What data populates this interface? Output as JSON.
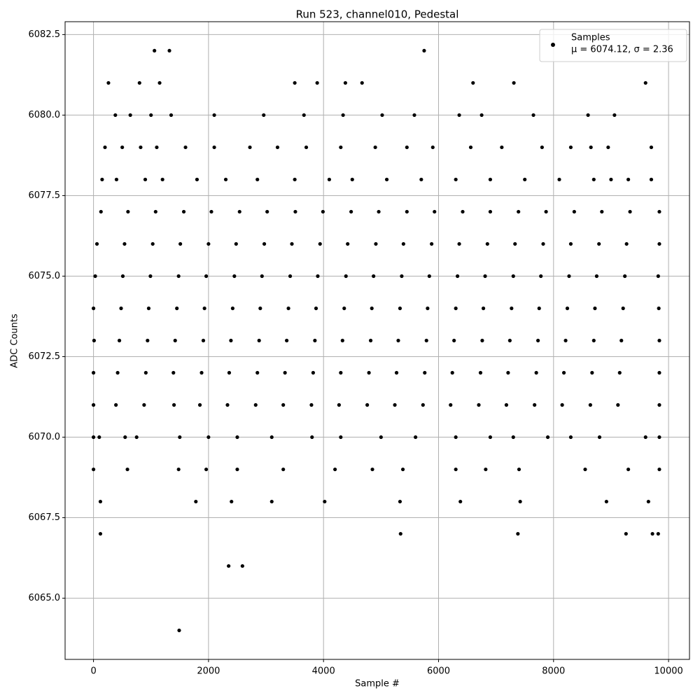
{
  "chart_data": {
    "type": "scatter",
    "title": "Run 523, channel010, Pedestal",
    "xlabel": "Sample #",
    "ylabel": "ADC Counts",
    "grid": true,
    "legend": "upper right",
    "legend_note": "μ = 6074.12, σ = 2.36",
    "xlim": [
      -494,
      10364
    ],
    "ylim": [
      6063.1,
      6082.9
    ],
    "xticks": [
      0,
      2000,
      4000,
      6000,
      8000,
      10000
    ],
    "yticks": [
      {
        "value": 6065,
        "label": "6065.0"
      },
      {
        "value": 6067.5,
        "label": "6067.5"
      },
      {
        "value": 6070,
        "label": "6070.0"
      },
      {
        "value": 6072.5,
        "label": "6072.5"
      },
      {
        "value": 6075,
        "label": "6075.0"
      },
      {
        "value": 6077.5,
        "label": "6077.5"
      },
      {
        "value": 6080,
        "label": "6080.0"
      },
      {
        "value": 6082.5,
        "label": "6082.5"
      }
    ],
    "series": [
      {
        "name": "Samples",
        "color": "#000000",
        "x": [
          1060,
          1320,
          5750,
          260,
          800,
          1150,
          3500,
          3890,
          4380,
          4670,
          6600,
          7310,
          9600,
          380,
          640,
          1000,
          1350,
          2100,
          2960,
          3660,
          4340,
          5020,
          5580,
          6360,
          6750,
          7650,
          8600,
          9060,
          200,
          500,
          820,
          1100,
          1600,
          2100,
          2720,
          3200,
          3700,
          4300,
          4900,
          5450,
          5900,
          6560,
          7100,
          7800,
          8300,
          8650,
          8950,
          9700,
          150,
          400,
          900,
          1200,
          1800,
          2300,
          2850,
          3500,
          4100,
          4500,
          5100,
          5700,
          6300,
          6900,
          7500,
          8100,
          8700,
          9000,
          9300,
          9700,
          130,
          600,
          1080,
          1570,
          2050,
          2540,
          3020,
          3510,
          3990,
          4480,
          4960,
          5450,
          5930,
          6420,
          6900,
          7390,
          7870,
          8360,
          8840,
          9330,
          9840,
          60,
          540,
          1030,
          1510,
          2000,
          2480,
          2970,
          3450,
          3940,
          4420,
          4910,
          5390,
          5880,
          6360,
          6850,
          7330,
          7820,
          8300,
          8790,
          9270,
          9840,
          30,
          510,
          990,
          1480,
          1960,
          2450,
          2930,
          3420,
          3900,
          4390,
          4870,
          5360,
          5840,
          6330,
          6810,
          7300,
          7780,
          8270,
          8750,
          9240,
          9820,
          0,
          480,
          960,
          1450,
          1930,
          2420,
          2900,
          3390,
          3870,
          4360,
          4840,
          5330,
          5810,
          6300,
          6780,
          7270,
          7750,
          8240,
          8720,
          9210,
          9830,
          10,
          450,
          940,
          1420,
          1910,
          2390,
          2880,
          3360,
          3850,
          4330,
          4820,
          5300,
          5790,
          6270,
          6760,
          7240,
          7730,
          8210,
          8700,
          9180,
          9840,
          0,
          420,
          910,
          1390,
          1880,
          2360,
          2850,
          3330,
          3820,
          4300,
          4790,
          5270,
          5760,
          6240,
          6730,
          7210,
          7700,
          8180,
          8670,
          9150,
          9840,
          0,
          390,
          880,
          1400,
          1850,
          2330,
          2820,
          3300,
          3790,
          4270,
          4760,
          5240,
          5730,
          6210,
          6700,
          7180,
          7670,
          8150,
          8640,
          9120,
          9840,
          0,
          100,
          550,
          750,
          1500,
          2000,
          2500,
          3100,
          3800,
          4300,
          5000,
          5600,
          6300,
          6900,
          7300,
          7900,
          8300,
          8800,
          9600,
          9840,
          0,
          590,
          1480,
          1960,
          2500,
          3300,
          4200,
          4850,
          5380,
          6300,
          6820,
          7400,
          8550,
          9300,
          9840,
          120,
          1780,
          2400,
          3100,
          4020,
          5330,
          6380,
          7420,
          8920,
          9650,
          120,
          5340,
          7380,
          9260,
          9720,
          9820,
          2350,
          2590,
          1490
        ],
        "values": [
          6082,
          6082,
          6082,
          6081,
          6081,
          6081,
          6081,
          6081,
          6081,
          6081,
          6081,
          6081,
          6081,
          6080,
          6080,
          6080,
          6080,
          6080,
          6080,
          6080,
          6080,
          6080,
          6080,
          6080,
          6080,
          6080,
          6080,
          6080,
          6079,
          6079,
          6079,
          6079,
          6079,
          6079,
          6079,
          6079,
          6079,
          6079,
          6079,
          6079,
          6079,
          6079,
          6079,
          6079,
          6079,
          6079,
          6079,
          6079,
          6078,
          6078,
          6078,
          6078,
          6078,
          6078,
          6078,
          6078,
          6078,
          6078,
          6078,
          6078,
          6078,
          6078,
          6078,
          6078,
          6078,
          6078,
          6078,
          6078,
          6077,
          6077,
          6077,
          6077,
          6077,
          6077,
          6077,
          6077,
          6077,
          6077,
          6077,
          6077,
          6077,
          6077,
          6077,
          6077,
          6077,
          6077,
          6077,
          6077,
          6077,
          6076,
          6076,
          6076,
          6076,
          6076,
          6076,
          6076,
          6076,
          6076,
          6076,
          6076,
          6076,
          6076,
          6076,
          6076,
          6076,
          6076,
          6076,
          6076,
          6076,
          6076,
          6075,
          6075,
          6075,
          6075,
          6075,
          6075,
          6075,
          6075,
          6075,
          6075,
          6075,
          6075,
          6075,
          6075,
          6075,
          6075,
          6075,
          6075,
          6075,
          6075,
          6075,
          6074,
          6074,
          6074,
          6074,
          6074,
          6074,
          6074,
          6074,
          6074,
          6074,
          6074,
          6074,
          6074,
          6074,
          6074,
          6074,
          6074,
          6074,
          6074,
          6074,
          6074,
          6073,
          6073,
          6073,
          6073,
          6073,
          6073,
          6073,
          6073,
          6073,
          6073,
          6073,
          6073,
          6073,
          6073,
          6073,
          6073,
          6073,
          6073,
          6073,
          6073,
          6073,
          6072,
          6072,
          6072,
          6072,
          6072,
          6072,
          6072,
          6072,
          6072,
          6072,
          6072,
          6072,
          6072,
          6072,
          6072,
          6072,
          6072,
          6072,
          6072,
          6072,
          6072,
          6071,
          6071,
          6071,
          6071,
          6071,
          6071,
          6071,
          6071,
          6071,
          6071,
          6071,
          6071,
          6071,
          6071,
          6071,
          6071,
          6071,
          6071,
          6071,
          6071,
          6071,
          6070,
          6070,
          6070,
          6070,
          6070,
          6070,
          6070,
          6070,
          6070,
          6070,
          6070,
          6070,
          6070,
          6070,
          6070,
          6070,
          6070,
          6070,
          6070,
          6070,
          6069,
          6069,
          6069,
          6069,
          6069,
          6069,
          6069,
          6069,
          6069,
          6069,
          6069,
          6069,
          6069,
          6069,
          6069,
          6068,
          6068,
          6068,
          6068,
          6068,
          6068,
          6068,
          6068,
          6068,
          6068,
          6067,
          6067,
          6067,
          6067,
          6067,
          6067,
          6066,
          6066,
          6064
        ]
      }
    ]
  }
}
